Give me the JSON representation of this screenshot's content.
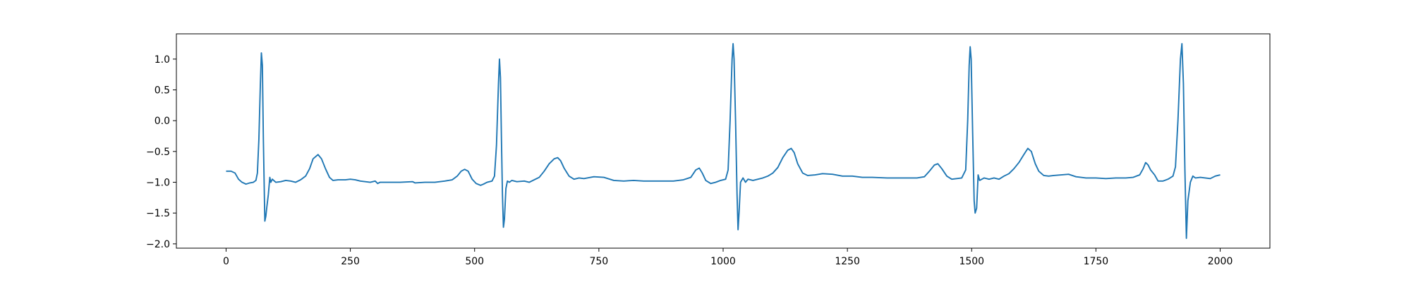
{
  "chart_data": {
    "type": "line",
    "x": [
      0,
      10,
      18,
      25,
      32,
      40,
      48,
      55,
      60,
      63,
      66,
      69,
      71,
      73,
      75,
      77,
      78,
      80,
      82,
      85,
      88,
      90,
      93,
      100,
      110,
      120,
      130,
      140,
      150,
      160,
      168,
      175,
      185,
      192,
      200,
      208,
      215,
      225,
      240,
      250,
      260,
      270,
      280,
      290,
      300,
      305,
      310,
      330,
      350,
      375,
      380,
      400,
      420,
      440,
      455,
      465,
      473,
      480,
      487,
      495,
      503,
      512,
      518,
      525,
      535,
      540,
      544,
      548,
      550,
      552,
      554,
      556,
      558,
      560,
      563,
      566,
      570,
      575,
      585,
      600,
      610,
      620,
      630,
      640,
      650,
      660,
      667,
      673,
      680,
      690,
      700,
      710,
      720,
      740,
      760,
      780,
      800,
      820,
      840,
      860,
      880,
      900,
      920,
      935,
      945,
      952,
      958,
      965,
      975,
      985,
      995,
      1005,
      1010,
      1014,
      1018,
      1020,
      1022,
      1025,
      1028,
      1030,
      1032,
      1035,
      1040,
      1045,
      1050,
      1060,
      1070,
      1080,
      1090,
      1100,
      1110,
      1120,
      1130,
      1137,
      1143,
      1150,
      1160,
      1170,
      1185,
      1200,
      1220,
      1240,
      1260,
      1280,
      1300,
      1330,
      1360,
      1390,
      1405,
      1415,
      1425,
      1432,
      1440,
      1450,
      1460,
      1470,
      1480,
      1488,
      1492,
      1495,
      1497,
      1499,
      1502,
      1505,
      1507,
      1510,
      1513,
      1516,
      1525,
      1535,
      1545,
      1555,
      1565,
      1575,
      1585,
      1595,
      1605,
      1613,
      1620,
      1628,
      1635,
      1645,
      1655,
      1665,
      1680,
      1695,
      1710,
      1730,
      1750,
      1770,
      1790,
      1810,
      1825,
      1838,
      1845,
      1850,
      1855,
      1860,
      1868,
      1875,
      1885,
      1895,
      1905,
      1910,
      1915,
      1920,
      1923,
      1926,
      1929,
      1932,
      1935,
      1940,
      1945,
      1950,
      1960,
      1970,
      1980,
      1990,
      2000
    ],
    "series": [
      {
        "color": "#1f77b4",
        "values": [
          -0.82,
          -0.82,
          -0.85,
          -0.95,
          -1.0,
          -1.03,
          -1.01,
          -1.0,
          -0.97,
          -0.85,
          -0.3,
          0.6,
          1.1,
          0.9,
          -0.3,
          -1.2,
          -1.63,
          -1.55,
          -1.4,
          -1.2,
          -0.92,
          -1.0,
          -0.95,
          -1.0,
          -0.99,
          -0.97,
          -0.98,
          -1.0,
          -0.96,
          -0.9,
          -0.78,
          -0.62,
          -0.55,
          -0.62,
          -0.78,
          -0.92,
          -0.97,
          -0.96,
          -0.96,
          -0.95,
          -0.96,
          -0.98,
          -0.99,
          -1.0,
          -0.98,
          -1.02,
          -1.0,
          -1.0,
          -1.0,
          -0.99,
          -1.01,
          -1.0,
          -1.0,
          -0.98,
          -0.96,
          -0.9,
          -0.82,
          -0.79,
          -0.82,
          -0.95,
          -1.02,
          -1.05,
          -1.03,
          -1.0,
          -0.98,
          -0.9,
          -0.4,
          0.6,
          1.0,
          0.7,
          -0.3,
          -1.2,
          -1.73,
          -1.6,
          -1.1,
          -0.98,
          -1.0,
          -0.97,
          -0.99,
          -0.98,
          -1.0,
          -0.96,
          -0.92,
          -0.82,
          -0.7,
          -0.62,
          -0.6,
          -0.65,
          -0.77,
          -0.9,
          -0.95,
          -0.93,
          -0.94,
          -0.91,
          -0.92,
          -0.97,
          -0.98,
          -0.97,
          -0.98,
          -0.98,
          -0.98,
          -0.98,
          -0.96,
          -0.92,
          -0.8,
          -0.77,
          -0.85,
          -0.97,
          -1.02,
          -1.0,
          -0.97,
          -0.95,
          -0.8,
          0.0,
          1.0,
          1.25,
          1.0,
          0.0,
          -1.2,
          -1.77,
          -1.5,
          -1.0,
          -0.93,
          -1.0,
          -0.95,
          -0.97,
          -0.95,
          -0.93,
          -0.9,
          -0.85,
          -0.76,
          -0.6,
          -0.48,
          -0.45,
          -0.52,
          -0.7,
          -0.85,
          -0.89,
          -0.88,
          -0.86,
          -0.87,
          -0.9,
          -0.9,
          -0.92,
          -0.92,
          -0.93,
          -0.93,
          -0.93,
          -0.91,
          -0.82,
          -0.72,
          -0.7,
          -0.78,
          -0.9,
          -0.95,
          -0.94,
          -0.93,
          -0.8,
          0.0,
          0.9,
          1.2,
          1.0,
          -0.2,
          -1.3,
          -1.5,
          -1.42,
          -0.88,
          -0.97,
          -0.93,
          -0.95,
          -0.93,
          -0.95,
          -0.9,
          -0.86,
          -0.78,
          -0.68,
          -0.55,
          -0.45,
          -0.5,
          -0.7,
          -0.82,
          -0.89,
          -0.9,
          -0.89,
          -0.88,
          -0.87,
          -0.91,
          -0.93,
          -0.93,
          -0.94,
          -0.93,
          -0.93,
          -0.92,
          -0.88,
          -0.78,
          -0.68,
          -0.72,
          -0.8,
          -0.88,
          -0.98,
          -0.98,
          -0.95,
          -0.9,
          -0.75,
          0.0,
          1.0,
          1.25,
          0.6,
          -0.8,
          -1.91,
          -1.3,
          -1.0,
          -0.9,
          -0.93,
          -0.92,
          -0.93,
          -0.94,
          -0.9,
          -0.88
        ]
      }
    ],
    "xlim": [
      -100,
      2100
    ],
    "xticks": [
      0,
      250,
      500,
      750,
      1000,
      1250,
      1500,
      1750,
      2000
    ],
    "ylim": [
      -2.07,
      1.41
    ],
    "yticks": [
      {
        "value": -2.0,
        "label": "−2.0"
      },
      {
        "value": -1.5,
        "label": "−1.5"
      },
      {
        "value": -1.0,
        "label": "−1.0"
      },
      {
        "value": -0.5,
        "label": "−0.5"
      },
      {
        "value": 0.0,
        "label": "0.0"
      },
      0.5,
      {
        "value": 1.0,
        "label": "1.0"
      }
    ],
    "grid": false
  }
}
